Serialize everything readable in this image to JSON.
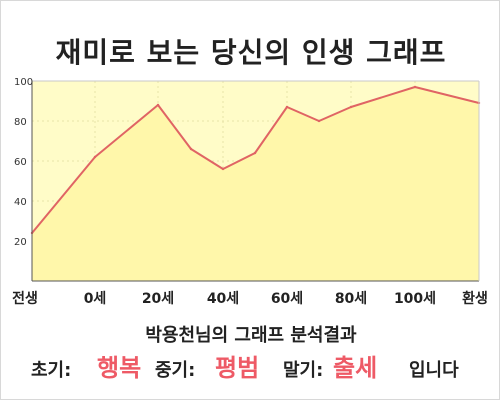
{
  "title": "재미로 보는 당신의 인생 그래프",
  "colors": {
    "plot_fill": "#fffcc8",
    "line": "#e06464",
    "area_fill": "#fff7aa",
    "result_value": "#ee5a66"
  },
  "chart_data": {
    "type": "area",
    "title": "재미로 보는 당신의 인생 그래프",
    "xlabel": "",
    "ylabel": "",
    "x_tick_labels": [
      "전생",
      "0세",
      "20세",
      "40세",
      "60세",
      "80세",
      "100세",
      "환생"
    ],
    "y_ticks": [
      20,
      40,
      60,
      80,
      100
    ],
    "ylim": [
      0,
      100
    ],
    "grid": true,
    "legend": "none",
    "series": [
      {
        "x": [
          "전생",
          "0세",
          "20세",
          "30세",
          "40세",
          "50세",
          "60세",
          "70세",
          "80세",
          "100세",
          "환생"
        ],
        "values": [
          24,
          62,
          88,
          66,
          56,
          64,
          87,
          80,
          87,
          97,
          89
        ]
      }
    ]
  },
  "result": {
    "title": "박용천님의 그래프 분석결과",
    "early_label": "초기:",
    "early_value": "행복",
    "mid_label": "중기:",
    "mid_value": "평범",
    "late_label": "말기:",
    "late_value": "출세",
    "ending": "입니다"
  }
}
